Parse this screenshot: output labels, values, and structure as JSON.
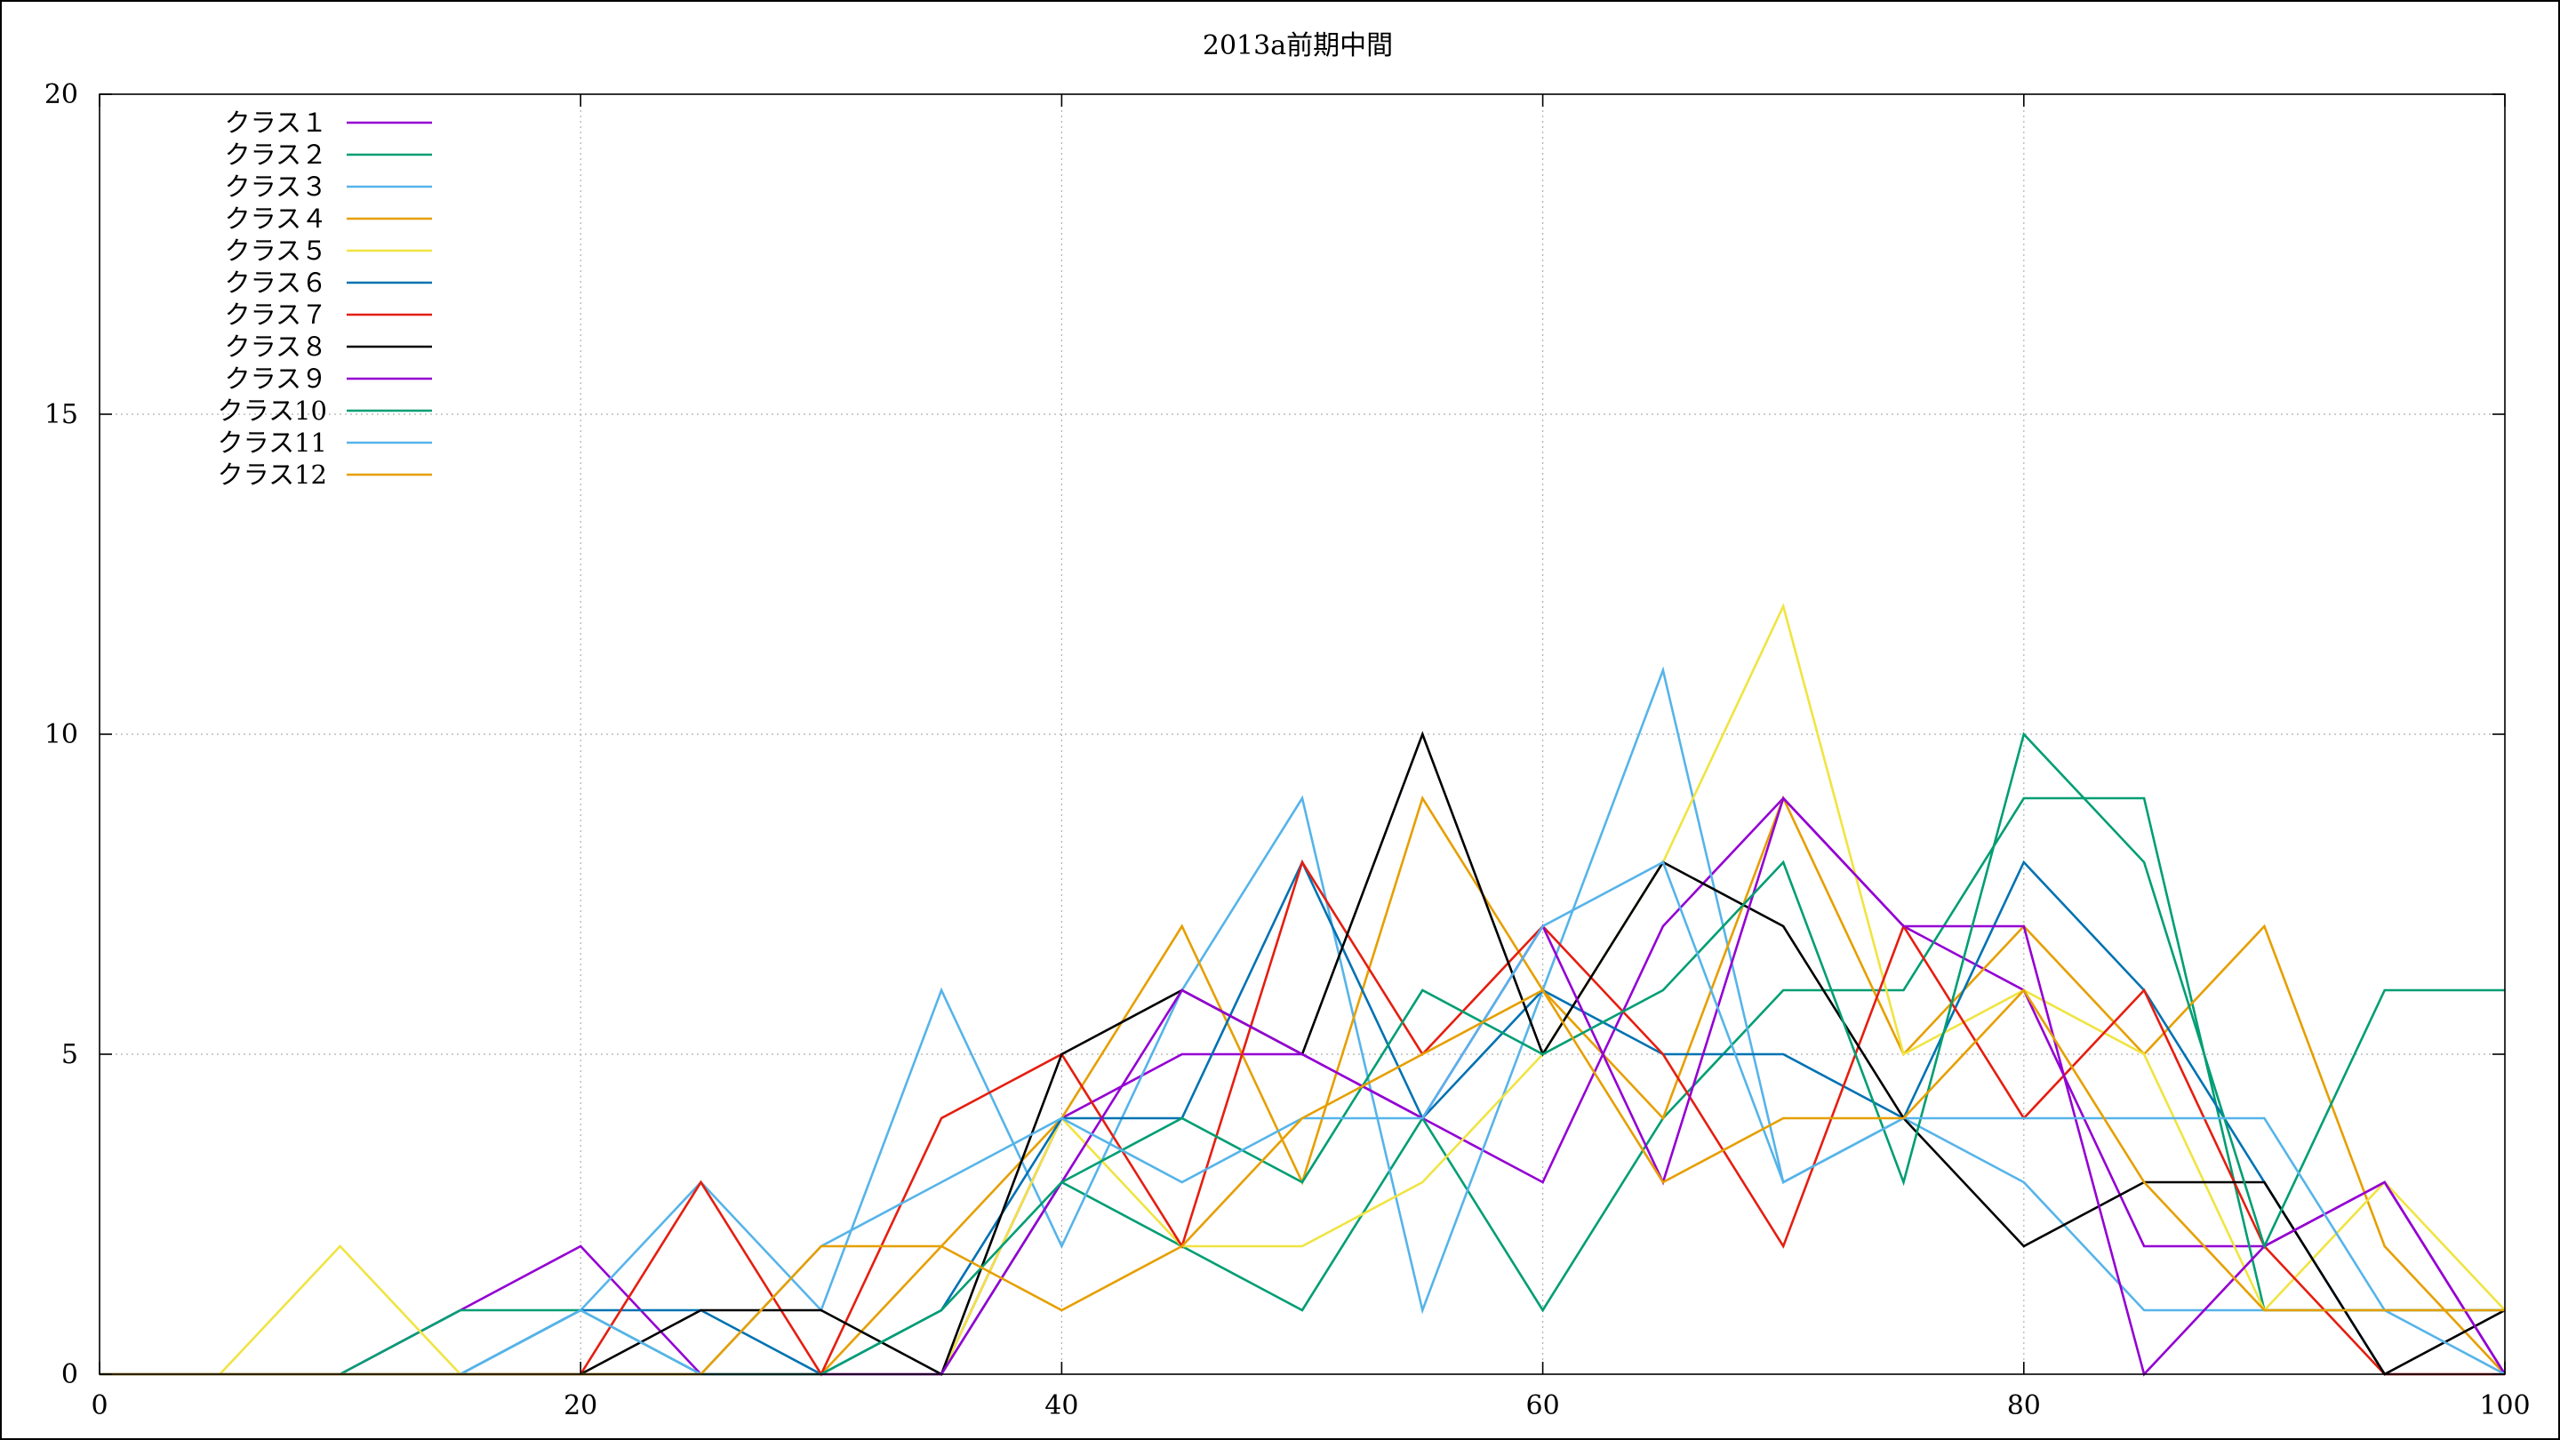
{
  "chart_data": {
    "type": "line",
    "title": "2013a前期中間",
    "xlabel": "",
    "ylabel": "",
    "xlim": [
      0,
      100
    ],
    "ylim": [
      0,
      20
    ],
    "xticks": [
      0,
      20,
      40,
      60,
      80,
      100
    ],
    "yticks": [
      0,
      5,
      10,
      15,
      20
    ],
    "grid": true,
    "legend_position": "top-left",
    "x": [
      0,
      5,
      10,
      15,
      20,
      25,
      30,
      35,
      40,
      45,
      50,
      55,
      60,
      65,
      70,
      75,
      80,
      85,
      90,
      95,
      100
    ],
    "series": [
      {
        "name": "クラス１",
        "color": "#9400d3",
        "values": [
          0,
          0,
          0,
          1,
          2,
          0,
          0,
          0,
          4,
          5,
          5,
          4,
          3,
          7,
          9,
          7,
          6,
          2,
          2,
          3,
          0
        ]
      },
      {
        "name": "クラス２",
        "color": "#009e73",
        "values": [
          0,
          0,
          0,
          1,
          1,
          0,
          0,
          0,
          3,
          2,
          1,
          4,
          1,
          4,
          6,
          6,
          9,
          9,
          1,
          1,
          1
        ]
      },
      {
        "name": "クラス３",
        "color": "#56b4e9",
        "values": [
          0,
          0,
          0,
          0,
          1,
          3,
          1,
          6,
          2,
          6,
          9,
          1,
          6,
          11,
          3,
          4,
          3,
          1,
          1,
          1,
          1
        ]
      },
      {
        "name": "クラス４",
        "color": "#e69f00",
        "values": [
          0,
          0,
          0,
          0,
          0,
          0,
          0,
          2,
          4,
          7,
          3,
          9,
          6,
          4,
          9,
          5,
          7,
          5,
          7,
          2,
          0
        ]
      },
      {
        "name": "クラス５",
        "color": "#f0e442",
        "values": [
          0,
          0,
          2,
          0,
          0,
          0,
          0,
          0,
          4,
          2,
          2,
          3,
          5,
          8,
          12,
          5,
          6,
          5,
          1,
          3,
          1
        ]
      },
      {
        "name": "クラス６",
        "color": "#0072b2",
        "values": [
          0,
          0,
          0,
          0,
          1,
          1,
          0,
          1,
          4,
          4,
          8,
          4,
          6,
          5,
          5,
          4,
          8,
          6,
          3,
          0,
          0
        ]
      },
      {
        "name": "クラス７",
        "color": "#e51e10",
        "values": [
          0,
          0,
          0,
          0,
          0,
          3,
          0,
          4,
          5,
          2,
          8,
          5,
          7,
          5,
          2,
          7,
          4,
          6,
          2,
          0,
          0
        ]
      },
      {
        "name": "クラス８",
        "color": "#000000",
        "values": [
          0,
          0,
          0,
          0,
          0,
          1,
          1,
          0,
          5,
          6,
          5,
          10,
          5,
          8,
          7,
          4,
          2,
          3,
          3,
          0,
          1
        ]
      },
      {
        "name": "クラス９",
        "color": "#9400d3",
        "values": [
          0,
          0,
          0,
          0,
          0,
          0,
          0,
          0,
          3,
          6,
          5,
          4,
          7,
          3,
          9,
          7,
          7,
          0,
          2,
          3,
          0
        ]
      },
      {
        "name": "クラス10",
        "color": "#009e73",
        "values": [
          0,
          0,
          0,
          0,
          0,
          0,
          0,
          1,
          3,
          4,
          3,
          6,
          5,
          6,
          8,
          3,
          10,
          8,
          2,
          6,
          6
        ]
      },
      {
        "name": "クラス11",
        "color": "#56b4e9",
        "values": [
          0,
          0,
          0,
          0,
          1,
          0,
          2,
          3,
          4,
          3,
          4,
          4,
          7,
          8,
          3,
          4,
          4,
          4,
          4,
          1,
          0
        ]
      },
      {
        "name": "クラス12",
        "color": "#e69f00",
        "values": [
          0,
          0,
          0,
          0,
          0,
          0,
          2,
          2,
          1,
          2,
          4,
          5,
          6,
          3,
          4,
          4,
          6,
          3,
          1,
          1,
          1
        ]
      }
    ]
  }
}
